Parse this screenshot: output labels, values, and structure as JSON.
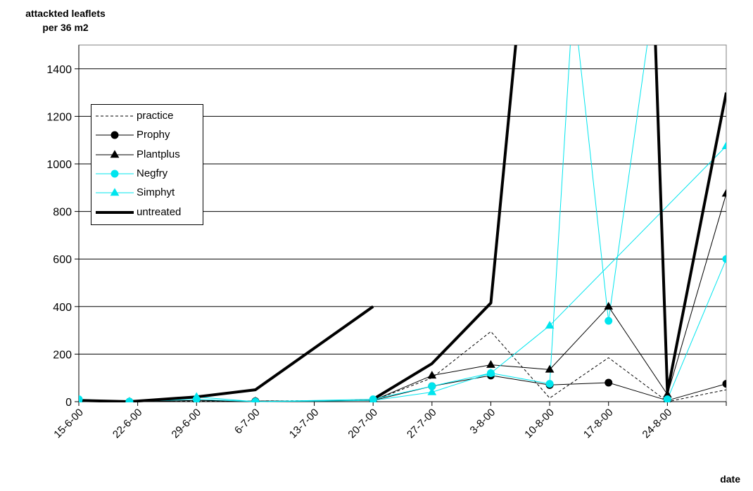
{
  "chart_data": {
    "type": "line",
    "ylabel": "attackted leaflets per 36 m2",
    "xlabel": "date",
    "ylim": [
      0,
      1500
    ],
    "yticks": [
      0,
      200,
      400,
      600,
      800,
      1000,
      1200,
      1400
    ],
    "categories": [
      "15-6-00",
      "22-6-00",
      "29-6-00",
      "6-7-00",
      "13-7-00",
      "20-7-00",
      "27-7-00",
      "3-8-00",
      "10-8-00",
      "17-8-00",
      "24-8-00"
    ],
    "x_note": "categories are tick labels; series x values are in weeks from 15-6-00",
    "grid": "horizontal",
    "legend_position": "left",
    "series": [
      {
        "name": "practice",
        "color": "#000000",
        "width": 1,
        "dash": "4,3",
        "marker": "none",
        "x": [
          0,
          0.86,
          2,
          3,
          5,
          6,
          7,
          8,
          9,
          10,
          11
        ],
        "y": [
          0,
          0,
          2,
          3,
          5,
          100,
          295,
          15,
          185,
          0,
          50
        ]
      },
      {
        "name": "Prophy",
        "color": "#000000",
        "width": 1,
        "marker": "circle",
        "x": [
          0,
          0.86,
          2,
          3,
          5,
          6,
          7,
          8,
          9,
          10,
          11
        ],
        "y": [
          5,
          0,
          5,
          2,
          5,
          65,
          110,
          70,
          80,
          5,
          75
        ]
      },
      {
        "name": "Plantplus",
        "color": "#000000",
        "width": 1,
        "marker": "triangle",
        "x": [
          0,
          0.86,
          2,
          3,
          5,
          6,
          7,
          8,
          9,
          10,
          11
        ],
        "y": [
          5,
          0,
          0,
          2,
          5,
          110,
          155,
          135,
          400,
          30,
          875
        ]
      },
      {
        "name": "Negfry",
        "color": "#00E5EE",
        "width": 1,
        "marker": "circle",
        "x": [
          0,
          0.86,
          2,
          3,
          5,
          6,
          7,
          8,
          8.4,
          9,
          9.77,
          10,
          11
        ],
        "y": [
          10,
          0,
          10,
          0,
          10,
          65,
          120,
          75,
          1700,
          340,
          1700,
          10,
          600
        ]
      },
      {
        "name": "Simphyt",
        "color": "#00E5EE",
        "width": 1,
        "marker": "triangle",
        "x": [
          0,
          0.86,
          2,
          3,
          5,
          6,
          7,
          8,
          11
        ],
        "y": [
          5,
          0,
          20,
          0,
          5,
          40,
          120,
          320,
          1075
        ]
      },
      {
        "name": "untreated",
        "color": "#000000",
        "width": 4,
        "marker": "none",
        "x": [
          0,
          0.86,
          2,
          3,
          5,
          null,
          5,
          6,
          7,
          7.5,
          9.77,
          10,
          11
        ],
        "y": [
          5,
          0,
          20,
          50,
          400,
          null,
          10,
          160,
          415,
          1700,
          1700,
          40,
          1300
        ]
      }
    ]
  },
  "labels": {
    "ylabel_line1": "attackted leaflets",
    "ylabel_line2": "per 36 m2",
    "xlabel": "date"
  }
}
